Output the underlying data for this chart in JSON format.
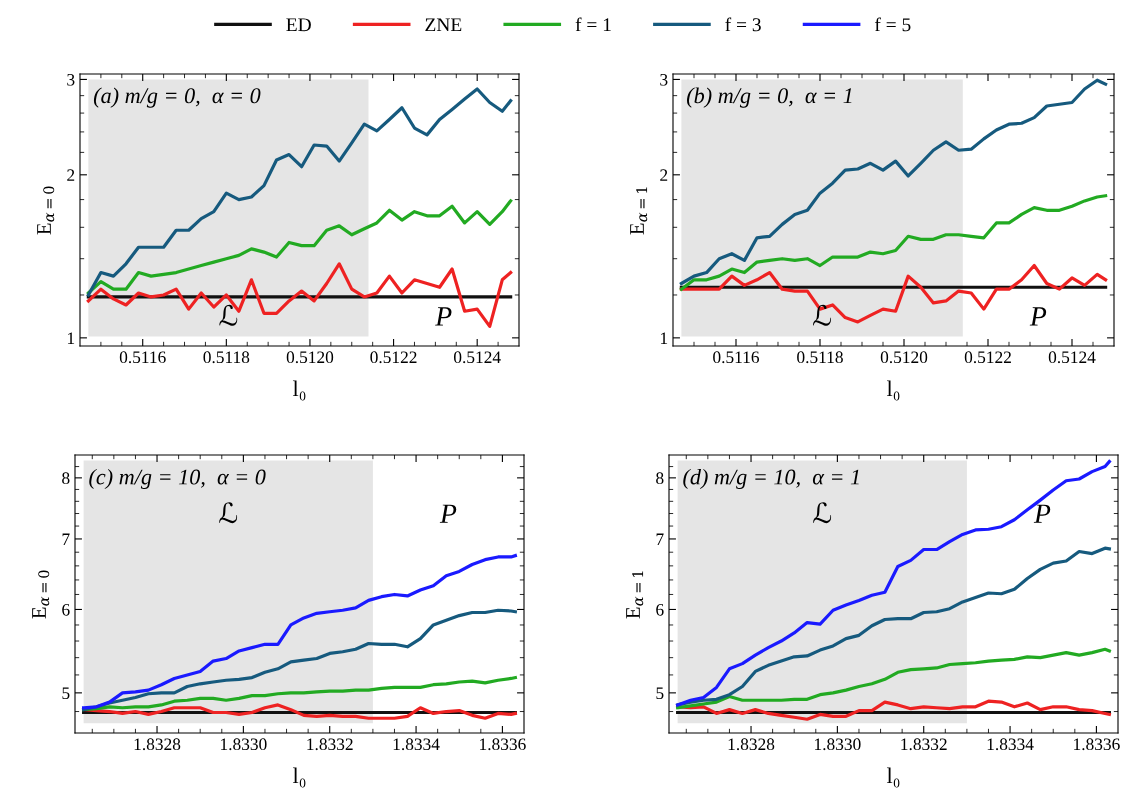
{
  "chart_data": [
    {
      "type": "line",
      "title": "(a) m/g = 0,  α = 0",
      "xlabel": "l₀",
      "ylabel": "E$_{α=0}$",
      "log": "y",
      "legend": "top",
      "xlim": [
        0.51145,
        0.5125
      ],
      "ylim": [
        0.966,
        3.07
      ],
      "xticks": [
        {
          "value": 0.5115,
          "label": null
        },
        {
          "value": 0.51155,
          "label": null
        },
        0.5116,
        {
          "value": 0.51165,
          "label": null
        },
        {
          "value": 0.5117,
          "label": null
        },
        {
          "value": 0.51175,
          "label": null
        },
        0.5118,
        {
          "value": 0.51185,
          "label": null
        },
        {
          "value": 0.5119,
          "label": null
        },
        {
          "value": 0.51195,
          "label": null
        },
        {
          "value": 0.512,
          "label": "0.5120"
        },
        {
          "value": 0.51205,
          "label": null
        },
        {
          "value": 0.5121,
          "label": null
        },
        {
          "value": 0.51215,
          "label": null
        },
        0.5122,
        {
          "value": 0.51225,
          "label": null
        },
        {
          "value": 0.5123,
          "label": null
        },
        {
          "value": 0.51235,
          "label": null
        },
        0.5124,
        {
          "value": 0.51245,
          "label": null
        }
      ],
      "yticks": [
        1,
        {
          "value": 1.2,
          "label": null
        },
        {
          "value": 1.4,
          "label": null
        },
        {
          "value": 1.6,
          "label": null
        },
        {
          "value": 1.8,
          "label": null
        },
        2,
        {
          "value": 2.2,
          "label": null
        },
        {
          "value": 2.4,
          "label": null
        },
        {
          "value": 2.6,
          "label": null
        },
        {
          "value": 2.8,
          "label": null
        },
        3
      ],
      "bands": [
        {
          "axis": "x",
          "from": 0.51147,
          "to": 0.51214,
          "color": "#e5e5e5"
        }
      ],
      "annotations": [
        "ℒ",
        "P"
      ],
      "x": [
        0.51147,
        0.5115,
        0.51153,
        0.51156,
        0.51159,
        0.51162,
        0.51165,
        0.51168,
        0.51171,
        0.51174,
        0.51177,
        0.5118,
        0.51183,
        0.51186,
        0.51189,
        0.51192,
        0.51195,
        0.51198,
        0.51201,
        0.51204,
        0.51207,
        0.5121,
        0.51213,
        0.51216,
        0.51219,
        0.51222,
        0.51225,
        0.51228,
        0.51231,
        0.51234,
        0.51237,
        0.5124,
        0.51243,
        0.51246,
        0.51248
      ],
      "series": [
        {
          "name": "ED",
          "color": "#111111",
          "x": [
            0.51147,
            0.51248
          ],
          "values": [
            1.19,
            1.19
          ]
        },
        {
          "name": "ZNE",
          "color": "#ee2222",
          "values": [
            1.17,
            1.23,
            1.18,
            1.15,
            1.21,
            1.19,
            1.2,
            1.23,
            1.13,
            1.21,
            1.14,
            1.2,
            1.12,
            1.28,
            1.11,
            1.11,
            1.17,
            1.22,
            1.17,
            1.26,
            1.37,
            1.23,
            1.19,
            1.21,
            1.3,
            1.21,
            1.28,
            1.26,
            1.24,
            1.34,
            1.12,
            1.13,
            1.05,
            1.28,
            1.32
          ]
        },
        {
          "name": "f = 1",
          "color": "#22aa22",
          "values": [
            1.21,
            1.27,
            1.23,
            1.23,
            1.32,
            1.3,
            1.31,
            1.32,
            1.34,
            1.36,
            1.38,
            1.4,
            1.42,
            1.46,
            1.44,
            1.41,
            1.5,
            1.48,
            1.48,
            1.58,
            1.61,
            1.55,
            1.59,
            1.63,
            1.72,
            1.65,
            1.71,
            1.68,
            1.68,
            1.75,
            1.63,
            1.71,
            1.62,
            1.71,
            1.79
          ]
        },
        {
          "name": "f = 3",
          "color": "#165a7e",
          "values": [
            1.2,
            1.32,
            1.3,
            1.37,
            1.47,
            1.47,
            1.47,
            1.58,
            1.58,
            1.66,
            1.71,
            1.85,
            1.8,
            1.82,
            1.91,
            2.13,
            2.18,
            2.07,
            2.27,
            2.26,
            2.12,
            2.29,
            2.48,
            2.41,
            2.53,
            2.66,
            2.44,
            2.37,
            2.53,
            2.64,
            2.76,
            2.88,
            2.72,
            2.62,
            2.74
          ]
        }
      ]
    },
    {
      "type": "line",
      "title": "(b) m/g = 0,  α = 1",
      "xlabel": "l₀",
      "ylabel": "E$_{α=1}$",
      "log": "y",
      "legend": "top",
      "xlim": [
        0.51145,
        0.5125
      ],
      "ylim": [
        0.966,
        3.07
      ],
      "xticks": [
        {
          "value": 0.5115,
          "label": null
        },
        {
          "value": 0.51155,
          "label": null
        },
        0.5116,
        {
          "value": 0.51165,
          "label": null
        },
        {
          "value": 0.5117,
          "label": null
        },
        {
          "value": 0.51175,
          "label": null
        },
        0.5118,
        {
          "value": 0.51185,
          "label": null
        },
        {
          "value": 0.5119,
          "label": null
        },
        {
          "value": 0.51195,
          "label": null
        },
        {
          "value": 0.512,
          "label": "0.5120"
        },
        {
          "value": 0.51205,
          "label": null
        },
        {
          "value": 0.5121,
          "label": null
        },
        {
          "value": 0.51215,
          "label": null
        },
        0.5122,
        {
          "value": 0.51225,
          "label": null
        },
        {
          "value": 0.5123,
          "label": null
        },
        {
          "value": 0.51235,
          "label": null
        },
        0.5124,
        {
          "value": 0.51245,
          "label": null
        }
      ],
      "yticks": [
        1,
        {
          "value": 1.2,
          "label": null
        },
        {
          "value": 1.4,
          "label": null
        },
        {
          "value": 1.6,
          "label": null
        },
        {
          "value": 1.8,
          "label": null
        },
        2,
        {
          "value": 2.2,
          "label": null
        },
        {
          "value": 2.4,
          "label": null
        },
        {
          "value": 2.6,
          "label": null
        },
        {
          "value": 2.8,
          "label": null
        },
        3
      ],
      "bands": [
        {
          "axis": "x",
          "from": 0.51147,
          "to": 0.51214,
          "color": "#e5e5e5"
        }
      ],
      "annotations": [
        "ℒ",
        "P"
      ],
      "x": [
        0.51147,
        0.5115,
        0.51153,
        0.51156,
        0.51159,
        0.51162,
        0.51165,
        0.51168,
        0.51171,
        0.51174,
        0.51177,
        0.5118,
        0.51183,
        0.51186,
        0.51189,
        0.51192,
        0.51195,
        0.51198,
        0.51201,
        0.51204,
        0.51207,
        0.5121,
        0.51213,
        0.51216,
        0.51219,
        0.51222,
        0.51225,
        0.51228,
        0.51231,
        0.51234,
        0.51237,
        0.5124,
        0.51243,
        0.51246,
        0.51248
      ],
      "series": [
        {
          "name": "ED",
          "color": "#111111",
          "x": [
            0.51147,
            0.51248
          ],
          "values": [
            1.24,
            1.24
          ]
        },
        {
          "name": "ZNE",
          "color": "#ee2222",
          "values": [
            1.23,
            1.23,
            1.23,
            1.23,
            1.3,
            1.25,
            1.28,
            1.32,
            1.23,
            1.22,
            1.22,
            1.13,
            1.15,
            1.09,
            1.07,
            1.1,
            1.13,
            1.12,
            1.3,
            1.24,
            1.16,
            1.17,
            1.22,
            1.21,
            1.13,
            1.23,
            1.23,
            1.28,
            1.36,
            1.26,
            1.23,
            1.29,
            1.25,
            1.31,
            1.28
          ]
        },
        {
          "name": "f = 1",
          "color": "#22aa22",
          "values": [
            1.23,
            1.28,
            1.28,
            1.3,
            1.34,
            1.32,
            1.38,
            1.39,
            1.4,
            1.39,
            1.4,
            1.36,
            1.41,
            1.41,
            1.41,
            1.44,
            1.43,
            1.45,
            1.54,
            1.52,
            1.52,
            1.55,
            1.55,
            1.54,
            1.53,
            1.63,
            1.63,
            1.69,
            1.74,
            1.72,
            1.72,
            1.75,
            1.79,
            1.82,
            1.83
          ]
        },
        {
          "name": "f = 3",
          "color": "#165a7e",
          "values": [
            1.26,
            1.3,
            1.32,
            1.4,
            1.43,
            1.39,
            1.53,
            1.54,
            1.62,
            1.69,
            1.72,
            1.85,
            1.93,
            2.04,
            2.05,
            2.1,
            2.04,
            2.12,
            1.99,
            2.1,
            2.22,
            2.3,
            2.22,
            2.23,
            2.33,
            2.42,
            2.48,
            2.49,
            2.55,
            2.68,
            2.7,
            2.72,
            2.88,
            2.99,
            2.94
          ]
        }
      ]
    },
    {
      "type": "line",
      "title": "(c) m/g = 10,  α = 0",
      "xlabel": "l₀",
      "ylabel": "E$_{α=0}$",
      "log": "y",
      "legend": "top",
      "xlim": [
        1.83261,
        1.83365
      ],
      "ylim": [
        4.58,
        8.41
      ],
      "xticks": [
        {
          "value": 1.83265,
          "label": null
        },
        {
          "value": 1.8327,
          "label": null
        },
        {
          "value": 1.83275,
          "label": null
        },
        1.8328,
        {
          "value": 1.83285,
          "label": null
        },
        {
          "value": 1.8329,
          "label": null
        },
        {
          "value": 1.83295,
          "label": null
        },
        {
          "value": 1.833,
          "label": "1.8330"
        },
        {
          "value": 1.83305,
          "label": null
        },
        {
          "value": 1.8331,
          "label": null
        },
        {
          "value": 1.83315,
          "label": null
        },
        1.8332,
        {
          "value": 1.83325,
          "label": null
        },
        {
          "value": 1.8333,
          "label": null
        },
        {
          "value": 1.83335,
          "label": null
        },
        1.8334,
        {
          "value": 1.83345,
          "label": null
        },
        {
          "value": 1.8335,
          "label": null
        },
        {
          "value": 1.83355,
          "label": null
        },
        1.8336
      ],
      "yticks": [
        {
          "value": 4.8,
          "label": null
        },
        5,
        {
          "value": 5.2,
          "label": null
        },
        {
          "value": 5.4,
          "label": null
        },
        {
          "value": 5.6,
          "label": null
        },
        {
          "value": 5.8,
          "label": null
        },
        6,
        {
          "value": 6.2,
          "label": null
        },
        {
          "value": 6.4,
          "label": null
        },
        {
          "value": 6.6,
          "label": null
        },
        {
          "value": 6.8,
          "label": null
        },
        7,
        {
          "value": 7.2,
          "label": null
        },
        {
          "value": 7.4,
          "label": null
        },
        {
          "value": 7.6,
          "label": null
        },
        {
          "value": 7.8,
          "label": null
        },
        8,
        {
          "value": 8.2,
          "label": null
        }
      ],
      "bands": [
        {
          "axis": "x",
          "from": 1.83263,
          "to": 1.8333,
          "color": "#e5e5e5"
        }
      ],
      "annotations": [
        "ℒ",
        "P"
      ],
      "x": [
        1.83263,
        1.83266,
        1.83269,
        1.83272,
        1.83275,
        1.83278,
        1.83281,
        1.83284,
        1.83287,
        1.8329,
        1.83293,
        1.83296,
        1.83299,
        1.83302,
        1.83305,
        1.83308,
        1.83311,
        1.83314,
        1.83317,
        1.8332,
        1.83323,
        1.83326,
        1.83329,
        1.83332,
        1.83335,
        1.83338,
        1.83341,
        1.83344,
        1.83347,
        1.8335,
        1.83353,
        1.83356,
        1.83359,
        1.83362,
        1.83363
      ],
      "series": [
        {
          "name": "ED",
          "color": "#111111",
          "x": [
            1.83263,
            1.83363
          ],
          "values": [
            4.79,
            4.79
          ]
        },
        {
          "name": "ZNE",
          "color": "#ee2222",
          "values": [
            4.82,
            4.81,
            4.8,
            4.78,
            4.8,
            4.77,
            4.8,
            4.84,
            4.84,
            4.84,
            4.79,
            4.79,
            4.77,
            4.79,
            4.84,
            4.87,
            4.82,
            4.76,
            4.75,
            4.76,
            4.75,
            4.75,
            4.73,
            4.73,
            4.73,
            4.75,
            4.84,
            4.78,
            4.8,
            4.81,
            4.76,
            4.73,
            4.78,
            4.77,
            4.78
          ]
        },
        {
          "name": "f = 1",
          "color": "#22aa22",
          "values": [
            4.82,
            4.83,
            4.85,
            4.84,
            4.85,
            4.85,
            4.87,
            4.91,
            4.92,
            4.94,
            4.94,
            4.92,
            4.94,
            4.97,
            4.97,
            4.99,
            5.0,
            5.0,
            5.01,
            5.02,
            5.02,
            5.03,
            5.03,
            5.05,
            5.06,
            5.06,
            5.06,
            5.09,
            5.1,
            5.12,
            5.13,
            5.11,
            5.14,
            5.16,
            5.17
          ]
        },
        {
          "name": "f = 3",
          "color": "#165a7e",
          "values": [
            4.82,
            4.85,
            4.89,
            4.92,
            4.95,
            4.99,
            5.0,
            5.0,
            5.07,
            5.1,
            5.12,
            5.14,
            5.15,
            5.17,
            5.23,
            5.27,
            5.35,
            5.37,
            5.39,
            5.45,
            5.47,
            5.5,
            5.57,
            5.56,
            5.56,
            5.53,
            5.63,
            5.8,
            5.86,
            5.92,
            5.96,
            5.96,
            5.99,
            5.98,
            5.97
          ]
        },
        {
          "name": "f = 5",
          "color": "#1a1aff",
          "values": [
            4.84,
            4.85,
            4.9,
            5.0,
            5.01,
            5.03,
            5.09,
            5.16,
            5.2,
            5.24,
            5.36,
            5.39,
            5.48,
            5.52,
            5.56,
            5.56,
            5.8,
            5.89,
            5.95,
            5.97,
            5.99,
            6.02,
            6.12,
            6.17,
            6.2,
            6.18,
            6.26,
            6.32,
            6.46,
            6.52,
            6.62,
            6.69,
            6.73,
            6.73,
            6.75
          ]
        }
      ]
    },
    {
      "type": "line",
      "title": "(d) m/g = 10,  α = 1",
      "xlabel": "l₀",
      "ylabel": "E$_{α=1}$",
      "log": "y",
      "legend": "top",
      "xlim": [
        1.83261,
        1.83365
      ],
      "ylim": [
        4.58,
        8.41
      ],
      "xticks": [
        {
          "value": 1.83265,
          "label": null
        },
        {
          "value": 1.8327,
          "label": null
        },
        {
          "value": 1.83275,
          "label": null
        },
        1.8328,
        {
          "value": 1.83285,
          "label": null
        },
        {
          "value": 1.8329,
          "label": null
        },
        {
          "value": 1.83295,
          "label": null
        },
        {
          "value": 1.833,
          "label": "1.8330"
        },
        {
          "value": 1.83305,
          "label": null
        },
        {
          "value": 1.8331,
          "label": null
        },
        {
          "value": 1.83315,
          "label": null
        },
        1.8332,
        {
          "value": 1.83325,
          "label": null
        },
        {
          "value": 1.8333,
          "label": null
        },
        {
          "value": 1.83335,
          "label": null
        },
        1.8334,
        {
          "value": 1.83345,
          "label": null
        },
        {
          "value": 1.8335,
          "label": null
        },
        {
          "value": 1.83355,
          "label": null
        },
        1.8336
      ],
      "yticks": [
        {
          "value": 4.8,
          "label": null
        },
        5,
        {
          "value": 5.2,
          "label": null
        },
        {
          "value": 5.4,
          "label": null
        },
        {
          "value": 5.6,
          "label": null
        },
        {
          "value": 5.8,
          "label": null
        },
        6,
        {
          "value": 6.2,
          "label": null
        },
        {
          "value": 6.4,
          "label": null
        },
        {
          "value": 6.6,
          "label": null
        },
        {
          "value": 6.8,
          "label": null
        },
        7,
        {
          "value": 7.2,
          "label": null
        },
        {
          "value": 7.4,
          "label": null
        },
        {
          "value": 7.6,
          "label": null
        },
        {
          "value": 7.8,
          "label": null
        },
        8,
        {
          "value": 8.2,
          "label": null
        }
      ],
      "bands": [
        {
          "axis": "x",
          "from": 1.83263,
          "to": 1.8333,
          "color": "#e5e5e5"
        }
      ],
      "annotations": [
        "ℒ",
        "P"
      ],
      "x": [
        1.83263,
        1.83266,
        1.83269,
        1.83272,
        1.83275,
        1.83278,
        1.83281,
        1.83284,
        1.83287,
        1.8329,
        1.83293,
        1.83296,
        1.83299,
        1.83302,
        1.83305,
        1.83308,
        1.83311,
        1.83314,
        1.83317,
        1.8332,
        1.83323,
        1.83326,
        1.83329,
        1.83332,
        1.83335,
        1.83338,
        1.83341,
        1.83344,
        1.83347,
        1.8335,
        1.83353,
        1.83356,
        1.83359,
        1.83362,
        1.83363
      ],
      "series": [
        {
          "name": "ED",
          "color": "#111111",
          "x": [
            1.83263,
            1.83363
          ],
          "values": [
            4.79,
            4.79
          ]
        },
        {
          "name": "ZNE",
          "color": "#ee2222",
          "values": [
            4.85,
            4.84,
            4.85,
            4.78,
            4.82,
            4.78,
            4.82,
            4.78,
            4.76,
            4.74,
            4.72,
            4.77,
            4.75,
            4.75,
            4.81,
            4.81,
            4.9,
            4.87,
            4.83,
            4.85,
            4.84,
            4.83,
            4.85,
            4.85,
            4.91,
            4.9,
            4.85,
            4.89,
            4.82,
            4.85,
            4.85,
            4.82,
            4.81,
            4.78,
            4.77
          ]
        },
        {
          "name": "f = 1",
          "color": "#22aa22",
          "values": [
            4.84,
            4.86,
            4.88,
            4.9,
            4.96,
            4.92,
            4.92,
            4.92,
            4.92,
            4.93,
            4.93,
            4.98,
            5.0,
            5.03,
            5.07,
            5.1,
            5.15,
            5.23,
            5.26,
            5.27,
            5.28,
            5.32,
            5.33,
            5.34,
            5.36,
            5.37,
            5.38,
            5.41,
            5.4,
            5.43,
            5.46,
            5.43,
            5.46,
            5.5,
            5.48
          ]
        },
        {
          "name": "f = 3",
          "color": "#165a7e",
          "values": [
            4.87,
            4.9,
            4.92,
            4.93,
            4.98,
            5.07,
            5.24,
            5.31,
            5.36,
            5.41,
            5.42,
            5.49,
            5.54,
            5.63,
            5.67,
            5.79,
            5.87,
            5.88,
            5.88,
            5.96,
            5.97,
            6.01,
            6.1,
            6.16,
            6.22,
            6.21,
            6.27,
            6.42,
            6.55,
            6.64,
            6.67,
            6.81,
            6.78,
            6.86,
            6.85
          ]
        },
        {
          "name": "f = 5",
          "color": "#1a1aff",
          "values": [
            4.87,
            4.92,
            4.95,
            5.06,
            5.27,
            5.33,
            5.43,
            5.52,
            5.6,
            5.7,
            5.83,
            5.81,
            5.99,
            6.06,
            6.12,
            6.19,
            6.23,
            6.59,
            6.68,
            6.84,
            6.84,
            6.96,
            7.07,
            7.14,
            7.15,
            7.19,
            7.3,
            7.46,
            7.62,
            7.79,
            7.95,
            7.98,
            8.11,
            8.2,
            8.29
          ]
        }
      ]
    }
  ]
}
